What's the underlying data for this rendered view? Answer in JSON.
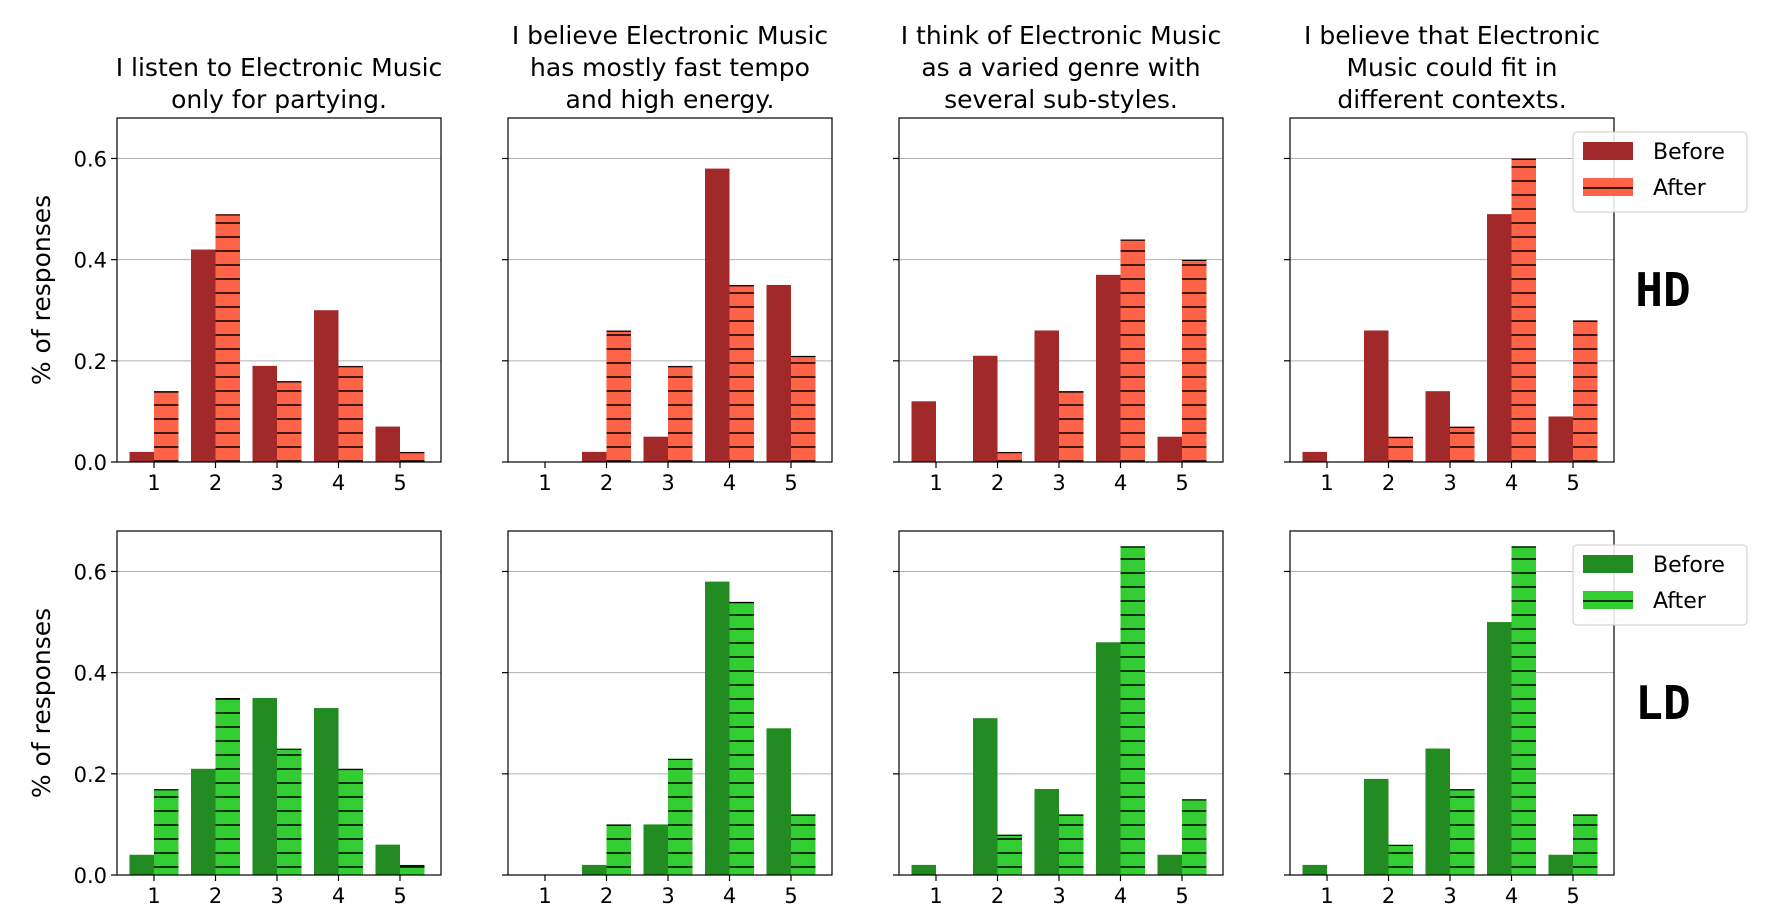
{
  "figure": {
    "ylabel": "% of responses",
    "row_labels": [
      "HD",
      "LD"
    ],
    "legend": [
      "Before",
      "After"
    ],
    "colors": {
      "HD": {
        "before": "#a2292a",
        "after": "#fe6347"
      },
      "LD": {
        "before": "#228b22",
        "after": "#33cd33"
      },
      "grid": "#b0b0b0",
      "hatch": "#000000"
    }
  },
  "chart_data": [
    {
      "type": "bar",
      "row": "HD",
      "title": [
        "I listen to Electronic Music",
        "only for partying."
      ],
      "categories": [
        "1",
        "2",
        "3",
        "4",
        "5"
      ],
      "series": [
        {
          "name": "Before",
          "values": [
            0.02,
            0.42,
            0.19,
            0.3,
            0.07
          ]
        },
        {
          "name": "After",
          "values": [
            0.14,
            0.49,
            0.16,
            0.19,
            0.02
          ]
        }
      ],
      "ylim": [
        0,
        0.68
      ],
      "yticks": [
        "0.0",
        "0.2",
        "0.4",
        "0.6"
      ],
      "grid": true
    },
    {
      "type": "bar",
      "row": "HD",
      "title": [
        "I believe Electronic Music",
        "has mostly fast tempo",
        "and high energy."
      ],
      "categories": [
        "1",
        "2",
        "3",
        "4",
        "5"
      ],
      "series": [
        {
          "name": "Before",
          "values": [
            0.0,
            0.02,
            0.05,
            0.58,
            0.35
          ]
        },
        {
          "name": "After",
          "values": [
            0.0,
            0.26,
            0.19,
            0.35,
            0.21
          ]
        }
      ],
      "ylim": [
        0,
        0.68
      ],
      "yticks": [
        "0.0",
        "0.2",
        "0.4",
        "0.6"
      ],
      "grid": true
    },
    {
      "type": "bar",
      "row": "HD",
      "title": [
        "I think of Electronic Music",
        "as a varied genre with",
        "several sub-styles."
      ],
      "categories": [
        "1",
        "2",
        "3",
        "4",
        "5"
      ],
      "series": [
        {
          "name": "Before",
          "values": [
            0.12,
            0.21,
            0.26,
            0.37,
            0.05
          ]
        },
        {
          "name": "After",
          "values": [
            0.0,
            0.02,
            0.14,
            0.44,
            0.4
          ]
        }
      ],
      "ylim": [
        0,
        0.68
      ],
      "yticks": [
        "0.0",
        "0.2",
        "0.4",
        "0.6"
      ],
      "grid": true
    },
    {
      "type": "bar",
      "row": "HD",
      "title": [
        "I believe that Electronic",
        "Music could fit in",
        "different contexts."
      ],
      "categories": [
        "1",
        "2",
        "3",
        "4",
        "5"
      ],
      "series": [
        {
          "name": "Before",
          "values": [
            0.02,
            0.26,
            0.14,
            0.49,
            0.09
          ]
        },
        {
          "name": "After",
          "values": [
            0.0,
            0.05,
            0.07,
            0.6,
            0.28
          ]
        }
      ],
      "ylim": [
        0,
        0.68
      ],
      "yticks": [
        "0.0",
        "0.2",
        "0.4",
        "0.6"
      ],
      "grid": true,
      "legend": "top-right"
    },
    {
      "type": "bar",
      "row": "LD",
      "title": [],
      "categories": [
        "1",
        "2",
        "3",
        "4",
        "5"
      ],
      "series": [
        {
          "name": "Before",
          "values": [
            0.04,
            0.21,
            0.35,
            0.33,
            0.06
          ]
        },
        {
          "name": "After",
          "values": [
            0.17,
            0.35,
            0.25,
            0.21,
            0.02
          ]
        }
      ],
      "ylim": [
        0,
        0.68
      ],
      "yticks": [
        "0.0",
        "0.2",
        "0.4",
        "0.6"
      ],
      "grid": true
    },
    {
      "type": "bar",
      "row": "LD",
      "title": [],
      "categories": [
        "1",
        "2",
        "3",
        "4",
        "5"
      ],
      "series": [
        {
          "name": "Before",
          "values": [
            0.0,
            0.02,
            0.1,
            0.58,
            0.29
          ]
        },
        {
          "name": "After",
          "values": [
            0.0,
            0.1,
            0.23,
            0.54,
            0.12
          ]
        }
      ],
      "ylim": [
        0,
        0.68
      ],
      "yticks": [
        "0.0",
        "0.2",
        "0.4",
        "0.6"
      ],
      "grid": true
    },
    {
      "type": "bar",
      "row": "LD",
      "title": [],
      "categories": [
        "1",
        "2",
        "3",
        "4",
        "5"
      ],
      "series": [
        {
          "name": "Before",
          "values": [
            0.02,
            0.31,
            0.17,
            0.46,
            0.04
          ]
        },
        {
          "name": "After",
          "values": [
            0.0,
            0.08,
            0.12,
            0.65,
            0.15
          ]
        }
      ],
      "ylim": [
        0,
        0.68
      ],
      "yticks": [
        "0.0",
        "0.2",
        "0.4",
        "0.6"
      ],
      "grid": true
    },
    {
      "type": "bar",
      "row": "LD",
      "title": [],
      "categories": [
        "1",
        "2",
        "3",
        "4",
        "5"
      ],
      "series": [
        {
          "name": "Before",
          "values": [
            0.02,
            0.19,
            0.25,
            0.5,
            0.04
          ]
        },
        {
          "name": "After",
          "values": [
            0.0,
            0.06,
            0.17,
            0.65,
            0.12
          ]
        }
      ],
      "ylim": [
        0,
        0.68
      ],
      "yticks": [
        "0.0",
        "0.2",
        "0.4",
        "0.6"
      ],
      "grid": true,
      "legend": "top-right"
    }
  ]
}
